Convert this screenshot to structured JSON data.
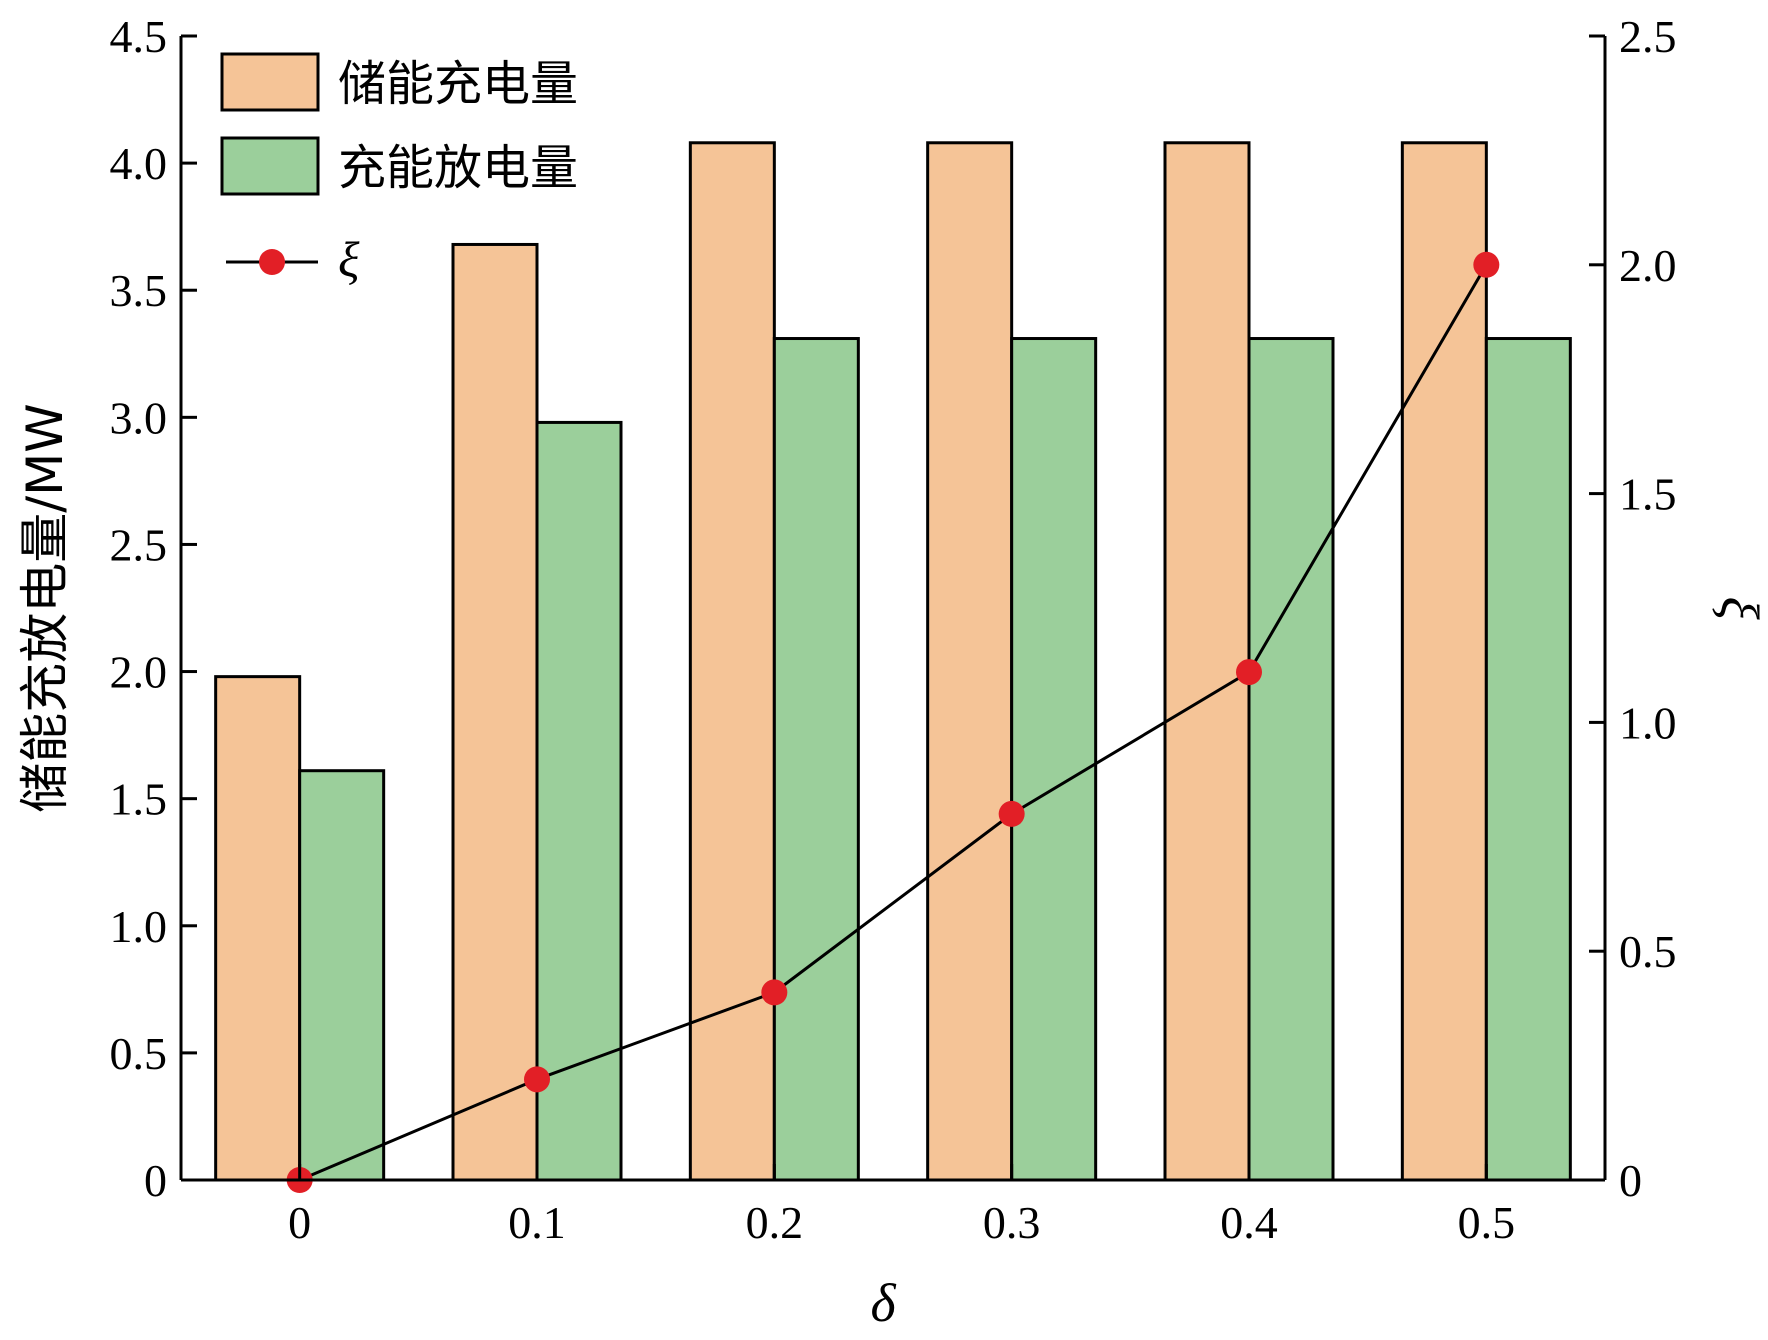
{
  "chart_data": {
    "type": "bar",
    "xlabel": "δ",
    "ylabel": "储能充放电量/MW",
    "y2label": "ξ",
    "categories": [
      "0",
      "0.1",
      "0.2",
      "0.3",
      "0.4",
      "0.5"
    ],
    "ylim": [
      0,
      4.5
    ],
    "y2lim": [
      0,
      2.5
    ],
    "yticks": [
      "0",
      "0.5",
      "1.0",
      "1.5",
      "2.0",
      "2.5",
      "3.0",
      "3.5",
      "4.0",
      "4.5"
    ],
    "y2ticks": [
      "0",
      "0.5",
      "1.0",
      "1.5",
      "2.0",
      "2.5"
    ],
    "series": [
      {
        "name": "储能充电量",
        "type": "bar",
        "axis": "left",
        "color": "#F5C497",
        "values": [
          1.98,
          3.68,
          4.08,
          4.08,
          4.08,
          4.08
        ]
      },
      {
        "name": "充能放电量",
        "type": "bar",
        "axis": "left",
        "color": "#9BCF9B",
        "values": [
          1.61,
          2.98,
          3.31,
          3.31,
          3.31,
          3.31
        ]
      },
      {
        "name": "ξ",
        "type": "line",
        "axis": "right",
        "color": "#E21F26",
        "values": [
          0.0,
          0.22,
          0.41,
          0.8,
          1.11,
          2.0
        ]
      }
    ],
    "grid": false,
    "legend_position": "top-left"
  }
}
